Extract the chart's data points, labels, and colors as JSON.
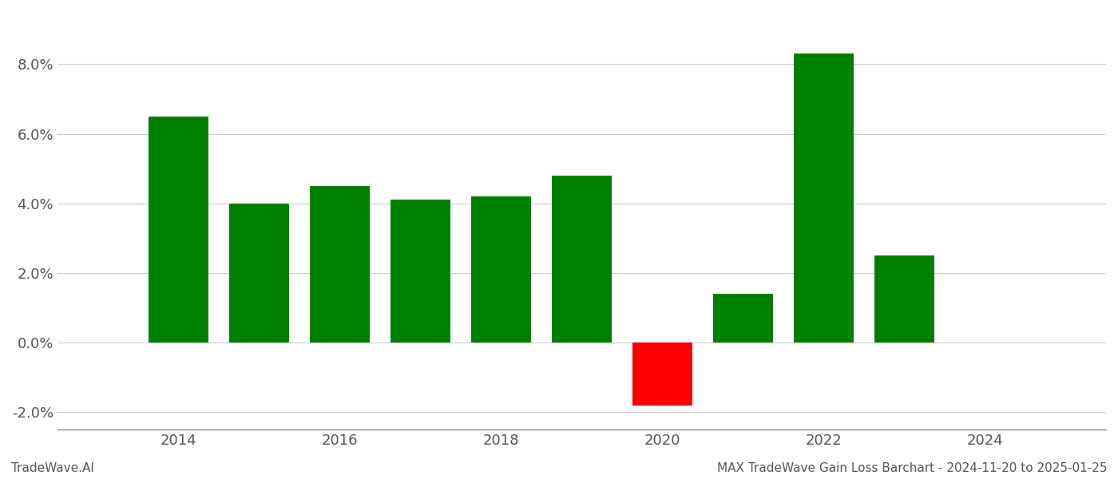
{
  "years": [
    2014,
    2015,
    2016,
    2017,
    2018,
    2019,
    2020,
    2021,
    2022,
    2023
  ],
  "values": [
    0.065,
    0.04,
    0.045,
    0.041,
    0.042,
    0.048,
    -0.018,
    0.014,
    0.083,
    0.025
  ],
  "bar_colors": [
    "#008000",
    "#008000",
    "#008000",
    "#008000",
    "#008000",
    "#008000",
    "#ff0000",
    "#008000",
    "#008000",
    "#008000"
  ],
  "xlim": [
    2012.5,
    2025.5
  ],
  "ylim": [
    -0.025,
    0.095
  ],
  "yticks": [
    -0.02,
    0.0,
    0.02,
    0.04,
    0.06,
    0.08
  ],
  "xticks": [
    2014,
    2016,
    2018,
    2020,
    2022,
    2024
  ],
  "bar_width": 0.75,
  "grid_color": "#cccccc",
  "background_color": "#ffffff",
  "footer_left": "TradeWave.AI",
  "footer_right": "MAX TradeWave Gain Loss Barchart - 2024-11-20 to 2025-01-25",
  "footer_fontsize": 11,
  "tick_fontsize": 13,
  "spine_color": "#888888"
}
